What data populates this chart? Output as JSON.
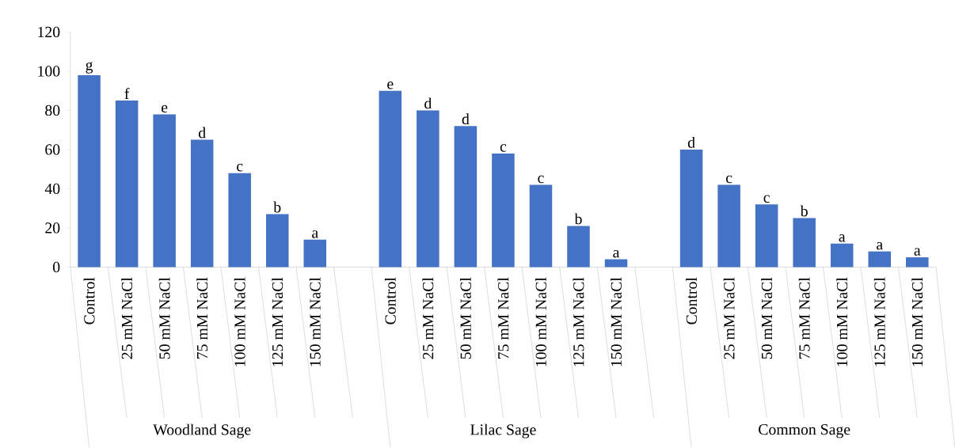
{
  "chart_data": {
    "type": "bar",
    "categories": [
      "Control",
      "25 mM NaCl",
      "50 mM NaCl",
      "75 mM NaCl",
      "100 mM NaCl",
      "125 mM NaCl",
      "150 mM NaCl",
      null,
      "Control",
      "25 mM NaCl",
      "50 mM NaCl",
      "75 mM NaCl",
      "100 mM NaCl",
      "125 mM NaCl",
      "150 mM NaCl",
      null,
      "Control",
      "25 mM NaCl",
      "50 mM NaCl",
      "75 mM NaCl",
      "100 mM NaCl",
      "125 mM NaCl",
      "150 mM NaCl"
    ],
    "values": [
      98,
      85,
      78,
      65,
      48,
      27,
      14,
      null,
      90,
      80,
      72,
      58,
      42,
      21,
      4,
      null,
      60,
      42,
      32,
      25,
      12,
      8,
      5
    ],
    "value_labels": [
      "g",
      "f",
      "e",
      "d",
      "c",
      "b",
      "a",
      null,
      "e",
      "d",
      "d",
      "c",
      "c",
      "b",
      "a",
      null,
      "d",
      "c",
      "c",
      "b",
      "a",
      "a",
      "a"
    ],
    "color": "#4472c4",
    "ylim": [
      0,
      120
    ],
    "yticks": [
      0,
      20,
      40,
      60,
      80,
      100,
      120
    ],
    "annotations": [
      "Woodland Sage",
      "Lilac Sage",
      "Common Sage"
    ]
  }
}
